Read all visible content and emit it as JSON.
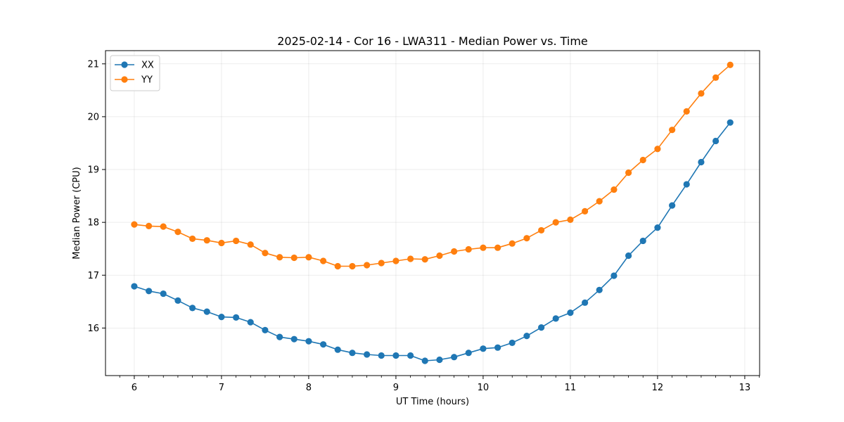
{
  "chart_data": {
    "type": "line",
    "title": "2025-02-14 - Cor 16 - LWA311 - Median Power vs. Time",
    "xlabel": "UT Time (hours)",
    "ylabel": "Median Power (CPU)",
    "xlim": [
      5.67,
      13.17
    ],
    "ylim": [
      15.1,
      21.25
    ],
    "xticks": [
      6,
      7,
      8,
      9,
      10,
      11,
      12,
      13
    ],
    "yticks": [
      16,
      17,
      18,
      19,
      20,
      21
    ],
    "grid": true,
    "legend_position": "top-left",
    "x": [
      6.0,
      6.167,
      6.333,
      6.5,
      6.667,
      6.833,
      7.0,
      7.167,
      7.333,
      7.5,
      7.667,
      7.833,
      8.0,
      8.167,
      8.333,
      8.5,
      8.667,
      8.833,
      9.0,
      9.167,
      9.333,
      9.5,
      9.667,
      9.833,
      10.0,
      10.167,
      10.333,
      10.5,
      10.667,
      10.833,
      11.0,
      11.167,
      11.333,
      11.5,
      11.667,
      11.833,
      12.0,
      12.167,
      12.333,
      12.5,
      12.667,
      12.833
    ],
    "series": [
      {
        "name": "XX",
        "color": "#1f77b4",
        "values": [
          16.79,
          16.7,
          16.65,
          16.52,
          16.38,
          16.31,
          16.21,
          16.2,
          16.11,
          15.96,
          15.83,
          15.79,
          15.75,
          15.69,
          15.59,
          15.53,
          15.5,
          15.48,
          15.48,
          15.48,
          15.38,
          15.4,
          15.45,
          15.53,
          15.61,
          15.63,
          15.72,
          15.85,
          16.01,
          16.18,
          16.29,
          16.48,
          16.72,
          16.99,
          17.37,
          17.65,
          17.9,
          18.32,
          18.72,
          19.14,
          19.54,
          19.89
        ]
      },
      {
        "name": "YY",
        "color": "#ff7f0e",
        "values": [
          17.96,
          17.93,
          17.92,
          17.82,
          17.69,
          17.66,
          17.61,
          17.65,
          17.58,
          17.42,
          17.34,
          17.33,
          17.34,
          17.27,
          17.17,
          17.17,
          17.19,
          17.23,
          17.27,
          17.31,
          17.3,
          17.37,
          17.45,
          17.49,
          17.52,
          17.52,
          17.6,
          17.7,
          17.85,
          18.0,
          18.05,
          18.21,
          18.4,
          18.62,
          18.94,
          19.18,
          19.39,
          19.75,
          20.1,
          20.44,
          20.74,
          20.98
        ]
      }
    ]
  }
}
